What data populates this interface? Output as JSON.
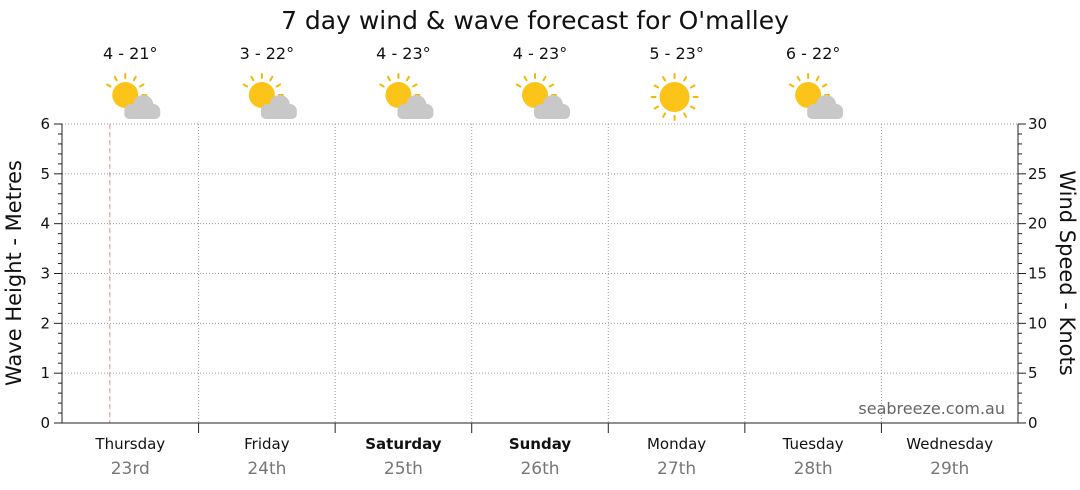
{
  "chart_data": {
    "type": "line",
    "title": "7 day wind & wave forecast for O'malley",
    "ylabel_left": "Wave Height - Metres",
    "ylabel_right": "Wind Speed - Knots",
    "ylim_left": [
      0,
      6
    ],
    "ylim_right": [
      0,
      30
    ],
    "yticks_left": [
      "0",
      "1",
      "2",
      "3",
      "4",
      "5",
      "6"
    ],
    "yticks_right": [
      "0",
      "5",
      "10",
      "15",
      "20",
      "25",
      "30"
    ],
    "grid": true,
    "watermark": "seabreeze.com.au",
    "days": [
      {
        "name": "Thursday",
        "date": "23rd",
        "bold": false,
        "temps": "4 - 21°",
        "icon": "partly-cloudy-icon"
      },
      {
        "name": "Friday",
        "date": "24th",
        "bold": false,
        "temps": "3 - 22°",
        "icon": "partly-cloudy-icon"
      },
      {
        "name": "Saturday",
        "date": "25th",
        "bold": true,
        "temps": "4 - 23°",
        "icon": "partly-cloudy-icon"
      },
      {
        "name": "Sunday",
        "date": "26th",
        "bold": true,
        "temps": "4 - 23°",
        "icon": "partly-cloudy-icon"
      },
      {
        "name": "Monday",
        "date": "27th",
        "bold": false,
        "temps": "5 - 23°",
        "icon": "sun-icon"
      },
      {
        "name": "Tuesday",
        "date": "28th",
        "bold": false,
        "temps": "6 - 22°",
        "icon": "partly-cloudy-icon"
      },
      {
        "name": "Wednesday",
        "date": "29th",
        "bold": false,
        "temps": "",
        "icon": ""
      }
    ],
    "now_marker_fraction_of_day": 0.35,
    "series": []
  },
  "colors": {
    "sun": "#fcc419",
    "sun_rays": "#f5b800",
    "cloud": "#c8c8c8",
    "grid": "#9a9a9a",
    "now_line": "#e88a8a",
    "date_text": "#777777",
    "watermark": "#666666"
  }
}
